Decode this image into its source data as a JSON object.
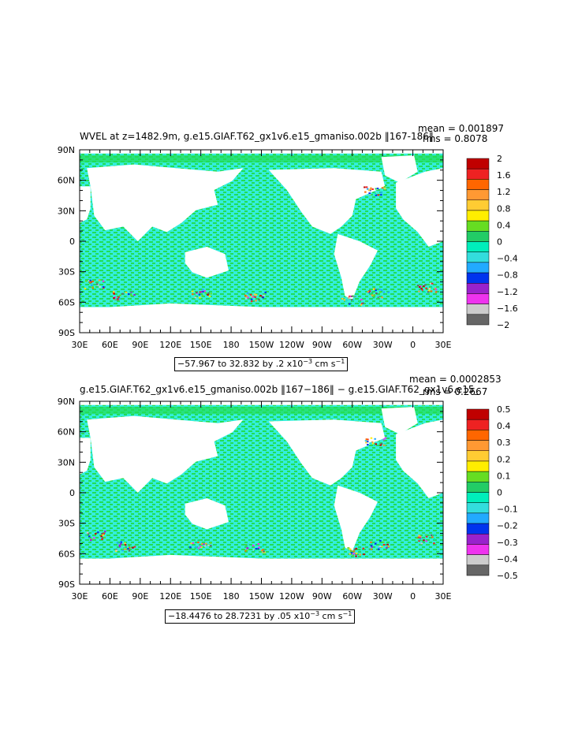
{
  "panels": [
    {
      "title": "WVEL at z=1482.9m, g.e15.GIAF.T62_gx1v6.e15_gmaniso.002b ‖167-186‖",
      "mean_label": "mean = 0.001897",
      "rms_label": "rms = 0.8078",
      "range_text": "−57.967 to 32.832 by .2",
      "units_text": "x10",
      "units_exp": "−3",
      "units_tail": " cm s",
      "units_tail_exp": "−1",
      "colorbar_labels": [
        "2",
        "1.6",
        "1.2",
        "0.8",
        "0.4",
        "0",
        "−0.4",
        "−0.8",
        "−1.2",
        "−1.6",
        "−2"
      ]
    },
    {
      "title": "g.e15.GIAF.T62_gx1v6.e15_gmaniso.002b ‖167−186‖ − g.e15.GIAF.T62_gx1v6.e15_",
      "mean_label": "mean = 0.0002853",
      "rms_label": "rms = 0.2667",
      "range_text": "−18.4476 to 28.7231 by .05",
      "units_text": "x10",
      "units_exp": "−3",
      "units_tail": " cm s",
      "units_tail_exp": "−1",
      "colorbar_labels": [
        "0.5",
        "0.4",
        "0.3",
        "0.2",
        "0.1",
        "0",
        "−0.1",
        "−0.2",
        "−0.3",
        "−0.4",
        "−0.5"
      ]
    }
  ],
  "axes": {
    "lat_labels": [
      "90N",
      "60N",
      "30N",
      "0",
      "30S",
      "60S",
      "90S"
    ],
    "lon_labels": [
      "30E",
      "60E",
      "90E",
      "120E",
      "150E",
      "180",
      "150W",
      "120W",
      "90W",
      "60W",
      "30W",
      "0",
      "30E"
    ]
  },
  "colors": {
    "colorbar": [
      "#c00000",
      "#ee2222",
      "#ff6600",
      "#ff9933",
      "#ffcc33",
      "#ffee00",
      "#66dd22",
      "#22cc66",
      "#00eebb",
      "#33dddd",
      "#22aaff",
      "#0033ee",
      "#9922cc",
      "#ee33ee",
      "#cccccc",
      "#666666"
    ],
    "ocean_green": "#22dd55",
    "ocean_cyan": "#33eedd"
  },
  "chart_data": [
    {
      "type": "heatmap",
      "title": "WVEL at z=1482.9m, g.e15.GIAF.T62_gx1v6.e15_gmaniso.002b ‖167-186‖",
      "x_ticks": [
        "30E",
        "60E",
        "90E",
        "120E",
        "150E",
        "180",
        "150W",
        "120W",
        "90W",
        "60W",
        "30W",
        "0",
        "30E"
      ],
      "y_ticks": [
        "90N",
        "60N",
        "30N",
        "0",
        "30S",
        "60S",
        "90S"
      ],
      "color_levels": [
        2,
        1.6,
        1.2,
        0.8,
        0.4,
        0,
        -0.4,
        -0.8,
        -1.2,
        -1.6,
        -2
      ],
      "mean": 0.001897,
      "rms": 0.8078,
      "min": -57.967,
      "max": 32.832,
      "interval": 0.2,
      "units": "x10^-3 cm s^-1"
    },
    {
      "type": "heatmap",
      "title": "g.e15.GIAF.T62_gx1v6.e15_gmaniso.002b ‖167−186‖ − g.e15.GIAF.T62_gx1v6.e15_",
      "x_ticks": [
        "30E",
        "60E",
        "90E",
        "120E",
        "150E",
        "180",
        "150W",
        "120W",
        "90W",
        "60W",
        "30W",
        "0",
        "30E"
      ],
      "y_ticks": [
        "90N",
        "60N",
        "30N",
        "0",
        "30S",
        "60S",
        "90S"
      ],
      "color_levels": [
        0.5,
        0.4,
        0.3,
        0.2,
        0.1,
        0,
        -0.1,
        -0.2,
        -0.3,
        -0.4,
        -0.5
      ],
      "mean": 0.0002853,
      "rms": 0.2667,
      "min": -18.4476,
      "max": 28.7231,
      "interval": 0.05,
      "units": "x10^-3 cm s^-1"
    }
  ]
}
